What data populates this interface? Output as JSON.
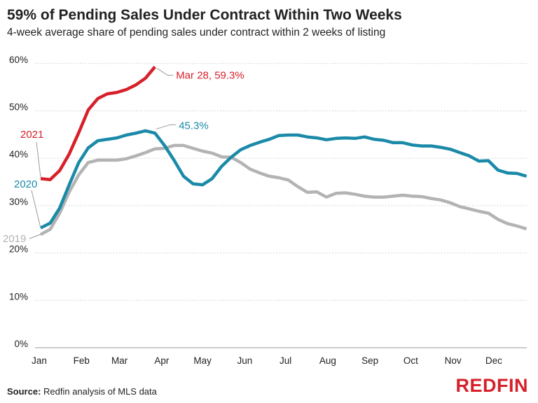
{
  "chart_data": {
    "type": "line",
    "title": "59% of Pending Sales Under Contract Within Two Weeks",
    "subtitle": "4-week average share of pending sales under contract within 2 weeks of listing",
    "x_unit": "week of year",
    "x_tick_labels": [
      "Jan",
      "Feb",
      "Mar",
      "Apr",
      "May",
      "Jun",
      "Jul",
      "Aug",
      "Sep",
      "Oct",
      "Nov",
      "Dec"
    ],
    "y_tick_labels": [
      "0%",
      "10%",
      "20%",
      "30%",
      "40%",
      "50%",
      "60%"
    ],
    "ylim": [
      0,
      60
    ],
    "grid": true,
    "series": [
      {
        "name": "2019",
        "color": "#b3b3b3",
        "values": [
          23.9,
          25.0,
          28.4,
          32.9,
          36.5,
          39.1,
          39.6,
          39.6,
          39.6,
          39.9,
          40.5,
          41.2,
          42.0,
          42.1,
          42.7,
          42.7,
          42.1,
          41.5,
          41.1,
          40.3,
          40.2,
          39.1,
          37.7,
          36.9,
          36.2,
          35.9,
          35.4,
          34.0,
          32.8,
          32.9,
          31.8,
          32.6,
          32.7,
          32.4,
          32.0,
          31.8,
          31.8,
          32.0,
          32.2,
          32.0,
          31.9,
          31.5,
          31.2,
          30.6,
          29.8,
          29.3,
          28.8,
          28.4,
          27.1,
          26.2,
          25.7,
          25.1
        ]
      },
      {
        "name": "2020",
        "color": "#1a8aa8",
        "values": [
          25.3,
          26.3,
          29.5,
          34.4,
          39.1,
          42.2,
          43.7,
          44.0,
          44.3,
          44.9,
          45.3,
          45.8,
          45.3,
          42.7,
          39.6,
          36.2,
          34.6,
          34.4,
          35.7,
          38.3,
          40.2,
          41.8,
          42.7,
          43.4,
          44.0,
          44.8,
          44.9,
          44.9,
          44.5,
          44.3,
          43.9,
          44.2,
          44.3,
          44.2,
          44.5,
          44.0,
          43.8,
          43.3,
          43.3,
          42.8,
          42.6,
          42.6,
          42.3,
          41.9,
          41.2,
          40.5,
          39.4,
          39.5,
          37.5,
          36.9,
          36.8,
          36.2
        ]
      },
      {
        "name": "2021",
        "color": "#d7202a",
        "values": [
          35.7,
          35.5,
          37.4,
          40.9,
          45.4,
          50.2,
          52.6,
          53.6,
          53.9,
          54.5,
          55.5,
          56.9,
          59.3
        ]
      }
    ],
    "annotations": [
      {
        "text": "Mar 28, 59.3%",
        "series": "2021"
      },
      {
        "text": "45.3%",
        "series": "2020"
      }
    ]
  },
  "source_label": "Source:",
  "source_text": " Redfin analysis of MLS data",
  "logo": "REDFIN"
}
